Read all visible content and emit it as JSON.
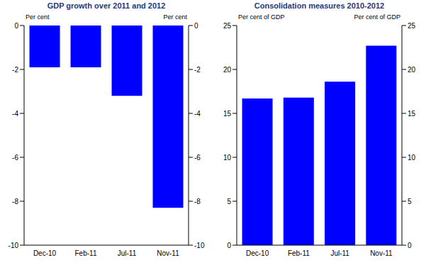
{
  "chart_data": [
    {
      "type": "bar",
      "title": "GDP growth over 2011 and 2012",
      "y_label": "Per cent",
      "y2_label": "Per cent",
      "categories": [
        "Dec-10",
        "Feb-11",
        "Jul-11",
        "Nov-11"
      ],
      "values": [
        -1.9,
        -1.9,
        -3.2,
        -8.3
      ],
      "color": "#0000ff",
      "ylim": [
        -10,
        0
      ],
      "yticks": [
        -10,
        -8,
        -6,
        -4,
        -2,
        0
      ],
      "y2lim": [
        -10,
        0
      ],
      "y2ticks": [
        -10,
        -8,
        -6,
        -4,
        -2,
        0
      ],
      "grid": false
    },
    {
      "type": "bar",
      "title": "Consolidation  measures 2010-2012",
      "y_label": "Per cent of GDP",
      "y2_label": "Per cent of GDP",
      "categories": [
        "Dec-10",
        "Feb-11",
        "Jul-11",
        "Nov-11"
      ],
      "values": [
        16.7,
        16.8,
        18.6,
        22.7
      ],
      "color": "#0000ff",
      "ylim": [
        0,
        25
      ],
      "yticks": [
        0,
        5,
        10,
        15,
        20,
        25
      ],
      "y2lim": [
        0,
        25
      ],
      "y2ticks": [
        0,
        5,
        10,
        15,
        20,
        25
      ],
      "grid": false
    }
  ]
}
